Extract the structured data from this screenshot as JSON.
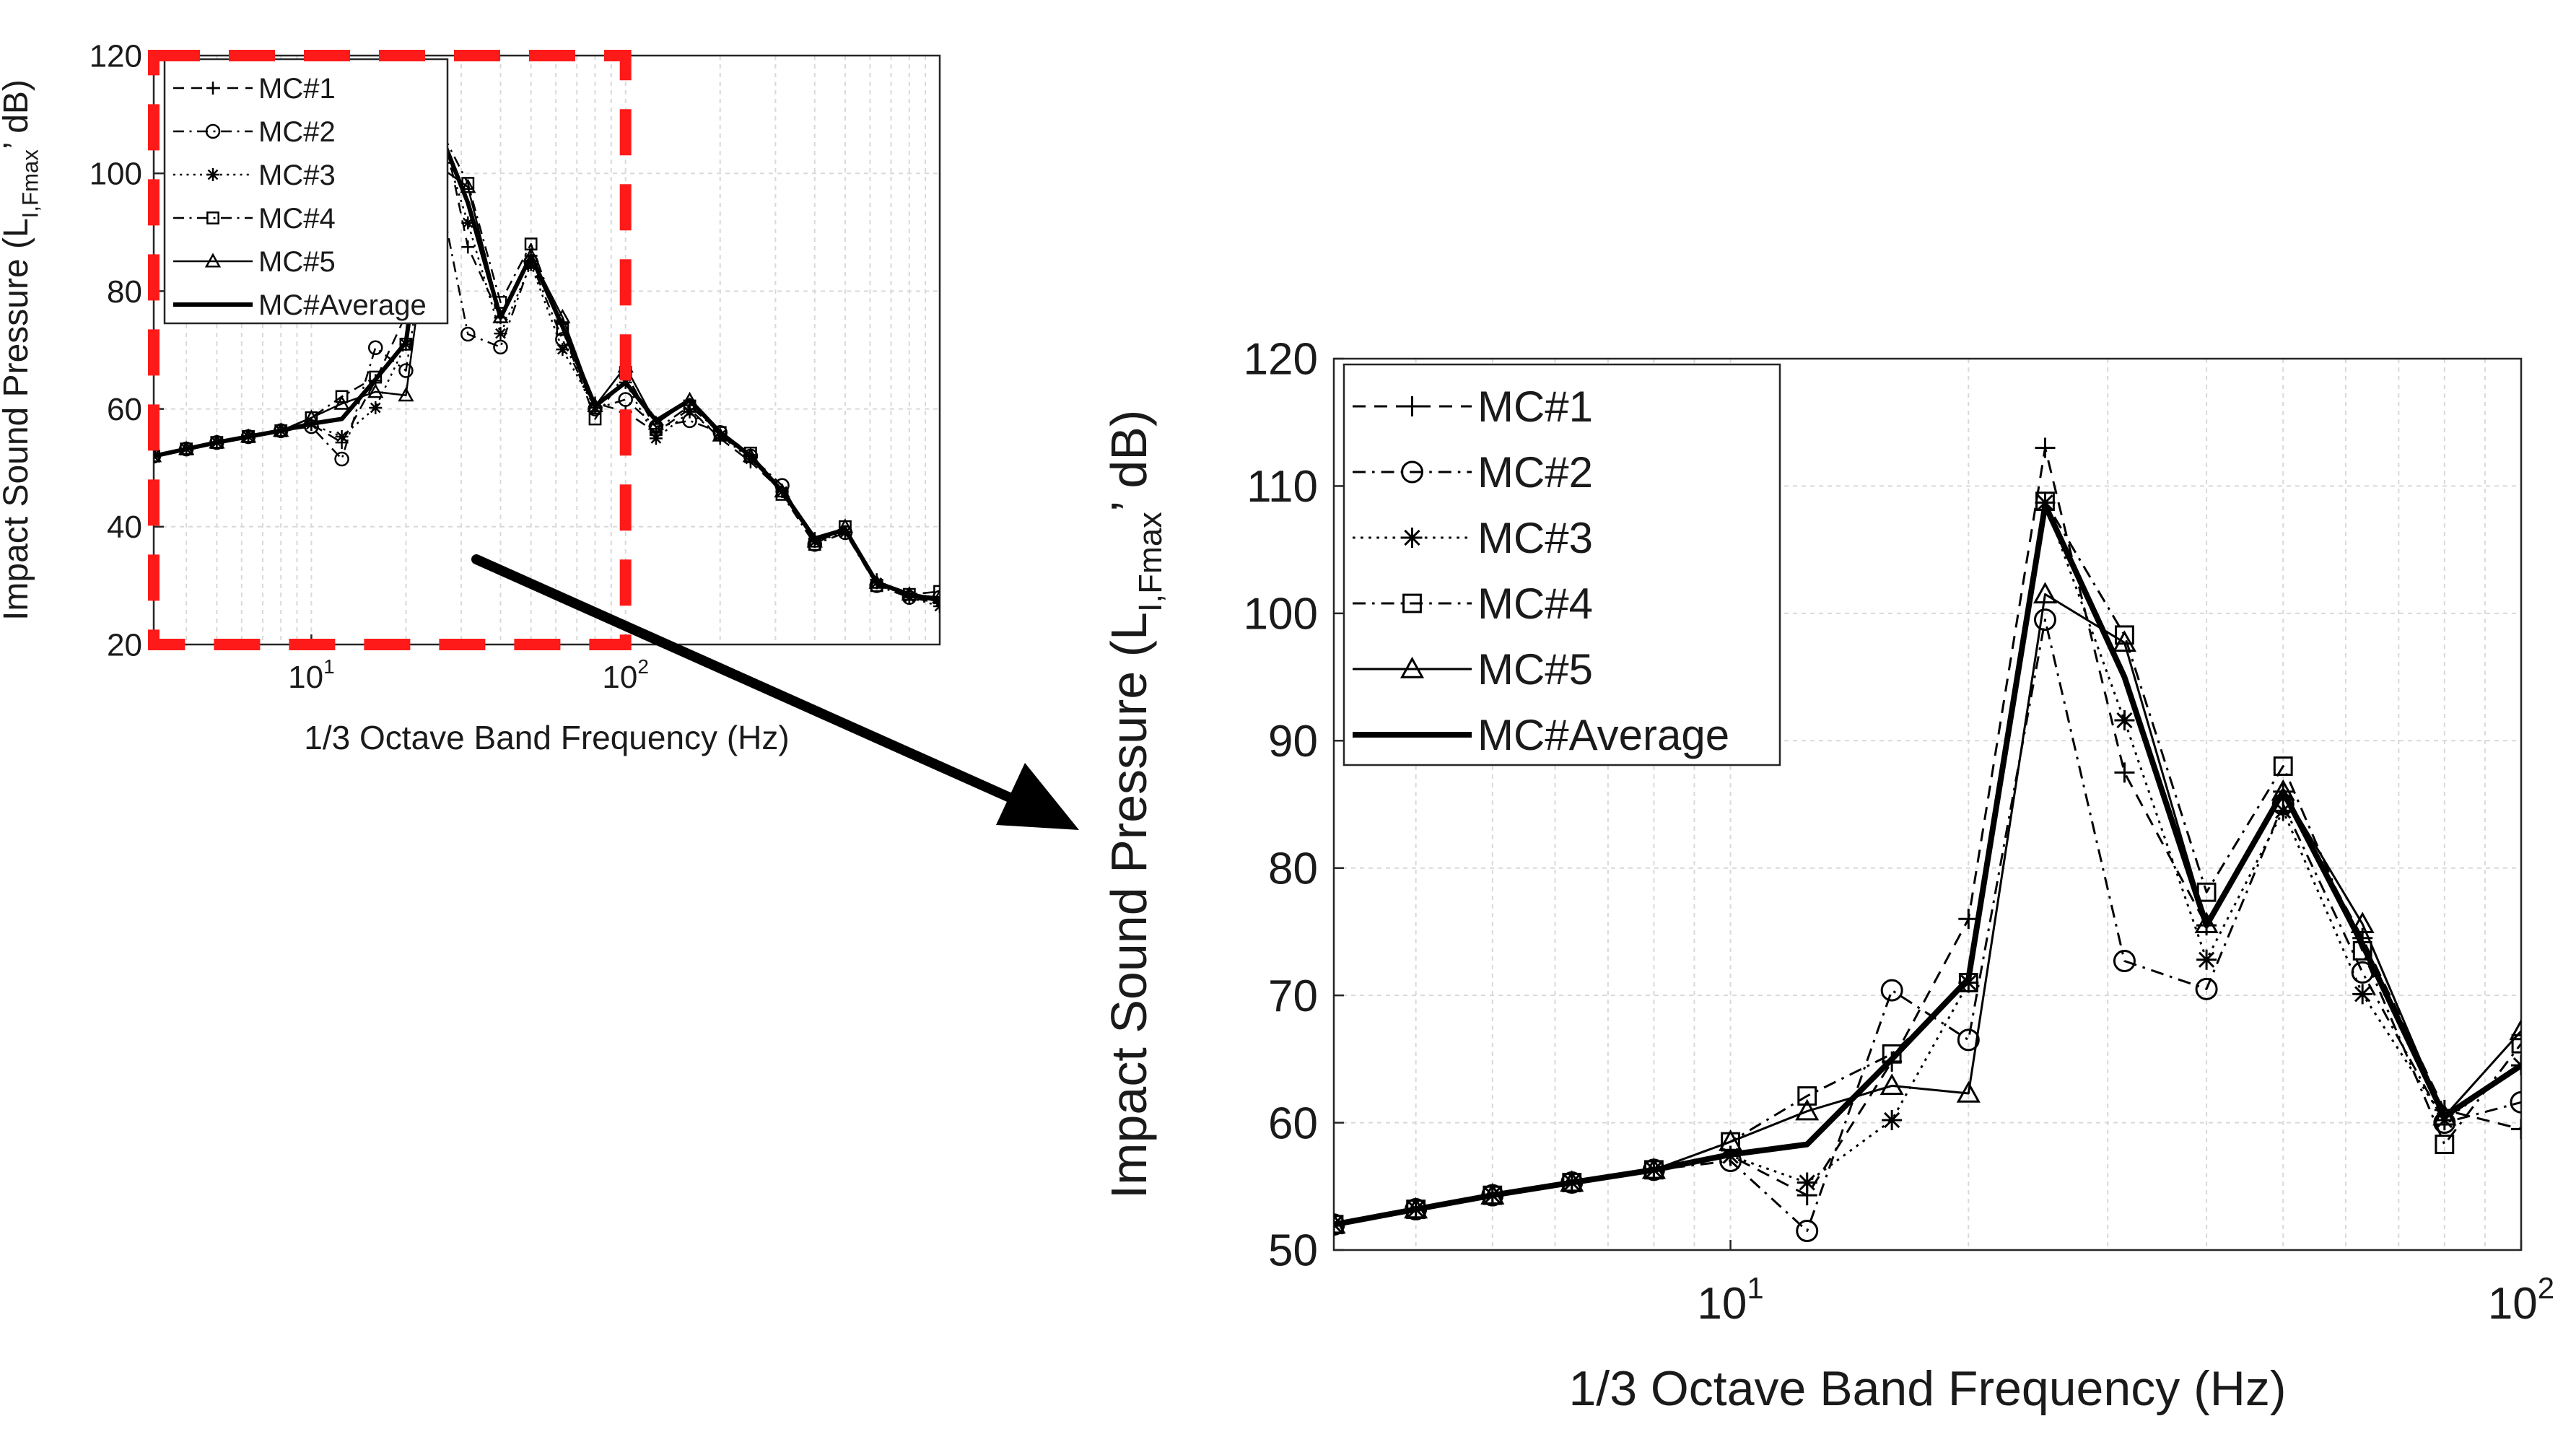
{
  "figure": {
    "arrow": "zoom-arrow",
    "highlight_color": "#ff1a1a",
    "line_color": "#000000",
    "grid_color": "#d9d9d9"
  },
  "chart_data": [
    {
      "id": "overview",
      "type": "line",
      "xscale": "log",
      "xlim": [
        3.15,
        1000
      ],
      "ylim": [
        20,
        120
      ],
      "yticks": [
        20,
        40,
        60,
        80,
        100,
        120
      ],
      "xticks": [
        {
          "value": 10,
          "label": "10",
          "sup": "1"
        },
        {
          "value": 100,
          "label": "10",
          "sup": "2"
        }
      ],
      "xlabel": "1/3 Octave Band Frequency (Hz)",
      "ylabel": "Impact Sound Pressure (L",
      "ylabel_sub": "I,Fmax",
      "ylabel_end": "’ dB)",
      "legend_location": "top-left",
      "highlight_region": {
        "x": [
          3.15,
          100
        ],
        "y": [
          20,
          120
        ]
      },
      "x": [
        3.15,
        4,
        5,
        6.3,
        8,
        10,
        12.5,
        16,
        20,
        25,
        31.5,
        40,
        50,
        63,
        80,
        100,
        125,
        160,
        200,
        250,
        315,
        400,
        500,
        630,
        800,
        1000
      ],
      "series": [
        {
          "name": "MC#1",
          "marker": "plus",
          "dash": "dash",
          "values": [
            52,
            53.2,
            54.3,
            55.3,
            56.3,
            57.4,
            54.3,
            64.8,
            76,
            113,
            87.5,
            75.5,
            86,
            74.5,
            61,
            59.5,
            56,
            60,
            55,
            51,
            46,
            38,
            39,
            31,
            28,
            27
          ]
        },
        {
          "name": "MC#2",
          "marker": "circle",
          "dash": "dashdot",
          "values": [
            52,
            53.2,
            54.3,
            55.3,
            56.3,
            57,
            51.5,
            70.4,
            66.5,
            99.5,
            72.7,
            70.5,
            85,
            71.8,
            60,
            61.6,
            57,
            58,
            56,
            52,
            47,
            37,
            39,
            30,
            28,
            28
          ]
        },
        {
          "name": "MC#3",
          "marker": "star",
          "dash": "dot",
          "values": [
            52,
            53.2,
            54.3,
            55.3,
            56.3,
            57.4,
            55.3,
            60.2,
            71,
            108.7,
            91.6,
            72.8,
            84.5,
            70.1,
            60.2,
            64.5,
            55,
            59.5,
            55.5,
            51.5,
            46,
            37.5,
            39,
            30.5,
            28,
            26.5
          ]
        },
        {
          "name": "MC#4",
          "marker": "square",
          "dash": "dashdot",
          "values": [
            52,
            53.2,
            54.3,
            55.3,
            56.3,
            58.5,
            62.1,
            65.4,
            71,
            108.8,
            98.3,
            78.1,
            88,
            73.5,
            58.3,
            66.2,
            56.5,
            60.5,
            56,
            52.5,
            45.5,
            37,
            40,
            30,
            28.5,
            29
          ]
        },
        {
          "name": "MC#5",
          "marker": "triangle",
          "dash": "solid",
          "values": [
            52,
            53.2,
            54.3,
            55.3,
            56.3,
            58.5,
            60.9,
            62.9,
            62.3,
            101.5,
            97.7,
            75.6,
            86,
            75.6,
            60.5,
            67.2,
            57.5,
            61.5,
            55.5,
            52,
            46,
            37.5,
            40,
            30.5,
            28.5,
            28
          ]
        },
        {
          "name": "MC#Average",
          "marker": "none",
          "dash": "solid-thick",
          "values": [
            52,
            53.2,
            54.3,
            55.3,
            56.3,
            57.5,
            58.3,
            65,
            71.3,
            108.5,
            95,
            75.5,
            86,
            74,
            60.5,
            64.5,
            58,
            61.5,
            56,
            52,
            46,
            38,
            39.5,
            30.5,
            28.5,
            27.5
          ]
        }
      ]
    },
    {
      "id": "zoom",
      "type": "line",
      "xscale": "log",
      "xlim": [
        3.15,
        100
      ],
      "ylim": [
        50,
        120
      ],
      "yticks": [
        50,
        60,
        70,
        80,
        90,
        100,
        110,
        120
      ],
      "xticks": [
        {
          "value": 10,
          "label": "10",
          "sup": "1"
        },
        {
          "value": 100,
          "label": "10",
          "sup": "2"
        }
      ],
      "xlabel": "1/3 Octave Band Frequency (Hz)",
      "ylabel": "Impact Sound Pressure (L",
      "ylabel_sub": "I,Fmax",
      "ylabel_end": "’ dB)",
      "legend_location": "top-left",
      "x": [
        3.15,
        4,
        5,
        6.3,
        8,
        10,
        12.5,
        16,
        20,
        25,
        31.5,
        40,
        50,
        63,
        80,
        100
      ],
      "series": [
        {
          "name": "MC#1",
          "marker": "plus",
          "dash": "dash",
          "values": [
            52,
            53.2,
            54.3,
            55.3,
            56.3,
            57.4,
            54.3,
            64.8,
            76,
            113,
            87.5,
            75.5,
            86,
            74.5,
            61,
            59.5
          ]
        },
        {
          "name": "MC#2",
          "marker": "circle",
          "dash": "dashdot",
          "values": [
            52,
            53.2,
            54.3,
            55.3,
            56.3,
            57,
            51.5,
            70.4,
            66.5,
            99.5,
            72.7,
            70.5,
            85,
            71.8,
            60,
            61.6
          ]
        },
        {
          "name": "MC#3",
          "marker": "star",
          "dash": "dot",
          "values": [
            52,
            53.2,
            54.3,
            55.3,
            56.3,
            57.4,
            55.3,
            60.2,
            71,
            108.7,
            91.6,
            72.8,
            84.5,
            70.1,
            60.2,
            64.5
          ]
        },
        {
          "name": "MC#4",
          "marker": "square",
          "dash": "dashdot",
          "values": [
            52,
            53.2,
            54.3,
            55.3,
            56.3,
            58.5,
            62.1,
            65.4,
            71,
            108.8,
            98.3,
            78.1,
            88,
            73.5,
            58.3,
            66.2
          ]
        },
        {
          "name": "MC#5",
          "marker": "triangle",
          "dash": "solid",
          "values": [
            52,
            53.2,
            54.3,
            55.3,
            56.3,
            58.5,
            60.9,
            62.9,
            62.3,
            101.5,
            97.7,
            75.6,
            86,
            75.6,
            60.5,
            67.2
          ]
        },
        {
          "name": "MC#Average",
          "marker": "none",
          "dash": "solid-thick",
          "values": [
            52,
            53.2,
            54.3,
            55.3,
            56.3,
            57.5,
            58.3,
            65,
            71.3,
            108.5,
            95,
            75.5,
            86,
            74,
            60.5,
            64.5
          ]
        }
      ]
    }
  ]
}
